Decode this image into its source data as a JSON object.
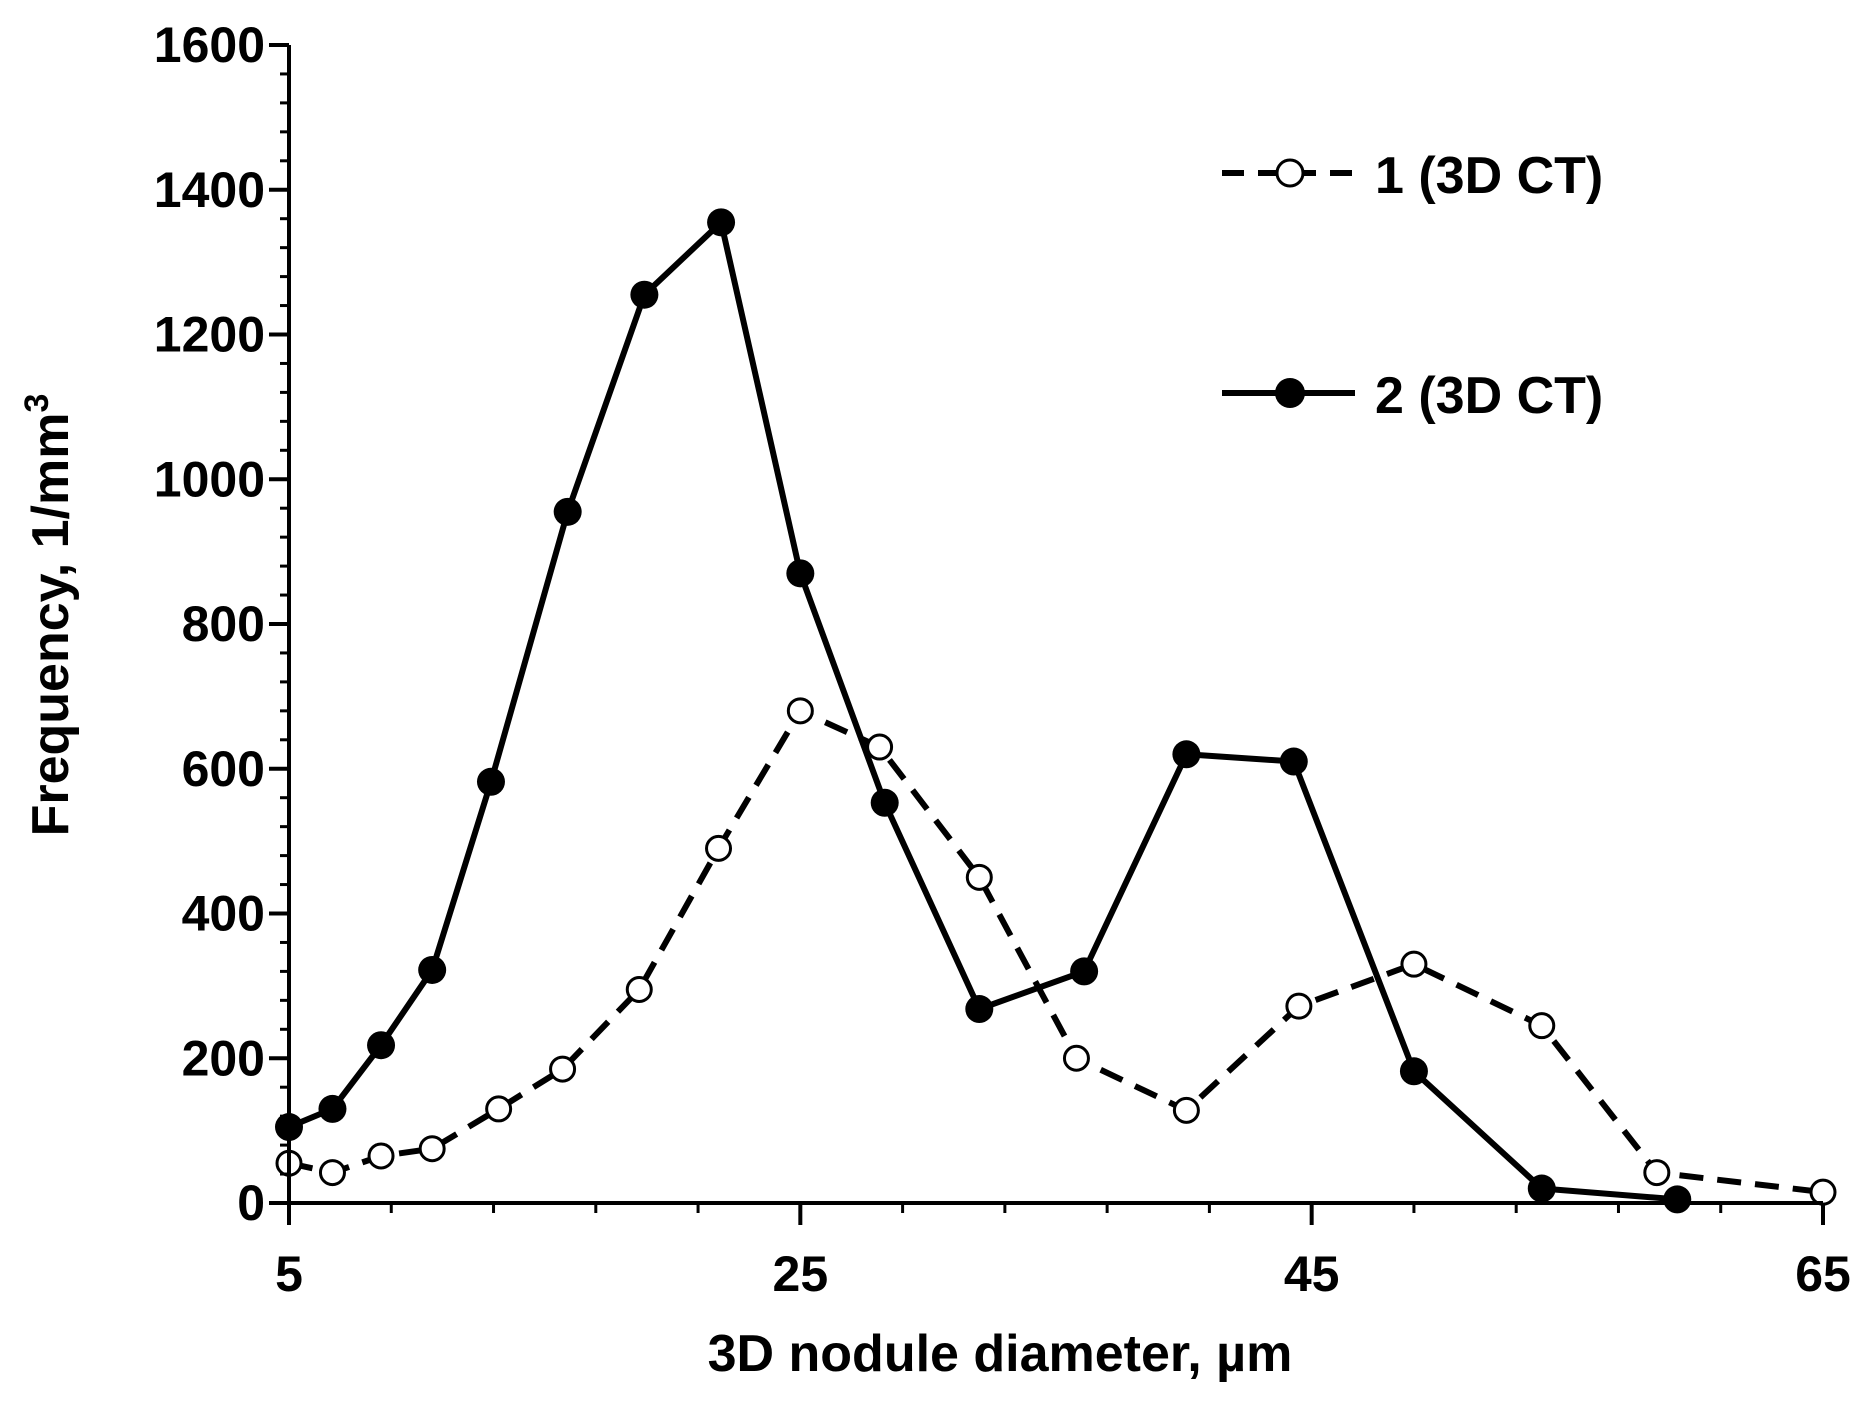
{
  "chart_data": {
    "type": "line",
    "xlabel": "3D nodule diameter, µm",
    "ylabel": "Frequency, 1/mm",
    "ylabel_superscript": "3",
    "xlim": [
      5,
      65
    ],
    "ylim": [
      0,
      1600
    ],
    "x_ticks": [
      5,
      25,
      45,
      65
    ],
    "x_tick_labels": [
      "5",
      "25",
      "45",
      "65"
    ],
    "x_minor_step": 4,
    "y_ticks": [
      0,
      200,
      400,
      600,
      800,
      1000,
      1200,
      1400,
      1600
    ],
    "y_tick_labels": [
      "0",
      "200",
      "400",
      "600",
      "800",
      "1000",
      "1200",
      "1400",
      "1600"
    ],
    "y_minor_step": 40,
    "grid": false,
    "legend_position": "top-right",
    "series": [
      {
        "name": "1 (3D CT)",
        "style": "dashed",
        "marker": "open-circle",
        "color": "#000000",
        "x": [
          5,
          6.7,
          8.6,
          10.6,
          13.2,
          15.7,
          18.7,
          21.8,
          25,
          28.1,
          32,
          35.8,
          40.1,
          44.5,
          49,
          54,
          58.5,
          65
        ],
        "y": [
          55,
          42,
          65,
          75,
          130,
          185,
          295,
          490,
          680,
          630,
          450,
          200,
          128,
          272,
          330,
          245,
          42,
          15
        ]
      },
      {
        "name": "2 (3D CT)",
        "style": "solid",
        "marker": "filled-circle",
        "color": "#000000",
        "x": [
          5,
          6.7,
          8.6,
          10.6,
          12.9,
          15.9,
          18.9,
          21.9,
          25,
          28.3,
          32,
          36.1,
          40.1,
          44.3,
          49,
          54,
          59.3
        ],
        "y": [
          105,
          130,
          218,
          322,
          582,
          955,
          1255,
          1355,
          870,
          553,
          268,
          320,
          620,
          610,
          182,
          20,
          5
        ]
      }
    ]
  }
}
